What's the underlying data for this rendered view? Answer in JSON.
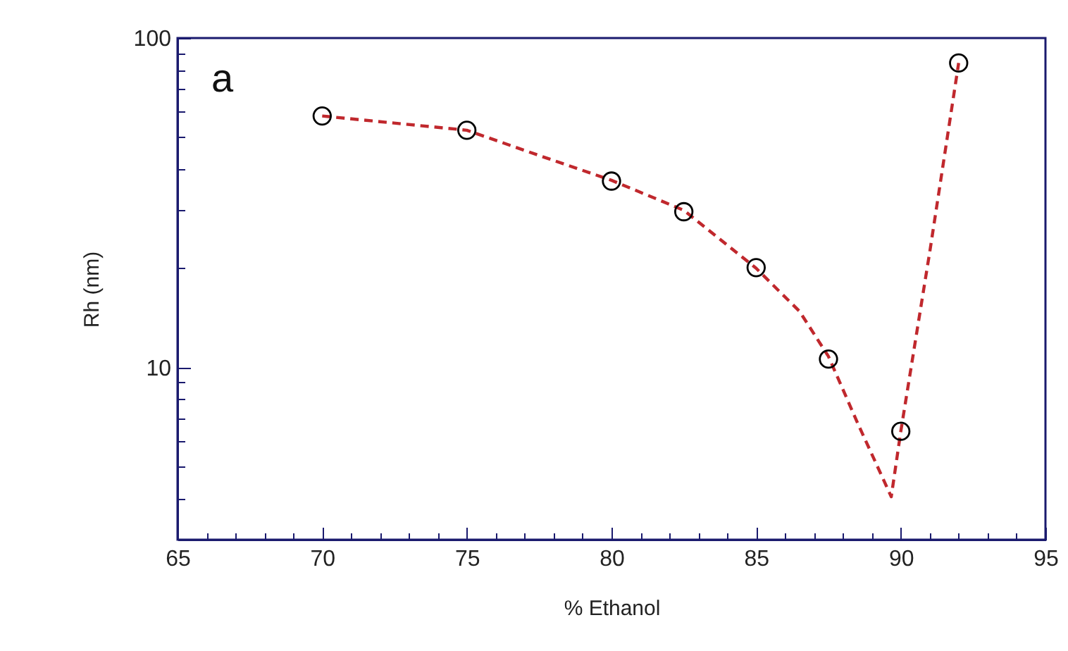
{
  "chart_data": {
    "type": "line",
    "xlabel": "% Ethanol",
    "ylabel": "Rh (nm)",
    "annotations": [
      "a"
    ],
    "log": "y",
    "grid": false,
    "xlim": [
      65,
      95
    ],
    "ylim": [
      3,
      100
    ],
    "xticks": [
      65,
      {
        "value": 66,
        "label": null
      },
      {
        "value": 67,
        "label": null
      },
      {
        "value": 68,
        "label": null
      },
      {
        "value": 69,
        "label": null
      },
      70,
      {
        "value": 71,
        "label": null
      },
      {
        "value": 72,
        "label": null
      },
      {
        "value": 73,
        "label": null
      },
      {
        "value": 74,
        "label": null
      },
      75,
      {
        "value": 76,
        "label": null
      },
      {
        "value": 77,
        "label": null
      },
      {
        "value": 78,
        "label": null
      },
      {
        "value": 79,
        "label": null
      },
      80,
      {
        "value": 81,
        "label": null
      },
      {
        "value": 82,
        "label": null
      },
      {
        "value": 83,
        "label": null
      },
      {
        "value": 84,
        "label": null
      },
      85,
      {
        "value": 86,
        "label": null
      },
      {
        "value": 87,
        "label": null
      },
      {
        "value": 88,
        "label": null
      },
      {
        "value": 89,
        "label": null
      },
      90,
      {
        "value": 91,
        "label": null
      },
      {
        "value": 92,
        "label": null
      },
      {
        "value": 93,
        "label": null
      },
      {
        "value": 94,
        "label": null
      },
      95
    ],
    "yticks": [
      {
        "value": 4,
        "label": null
      },
      {
        "value": 5,
        "label": null
      },
      {
        "value": 6,
        "label": null
      },
      {
        "value": 7,
        "label": null
      },
      {
        "value": 8,
        "label": null
      },
      {
        "value": 9,
        "label": null
      },
      10,
      {
        "value": 20,
        "label": null
      },
      {
        "value": 30,
        "label": null
      },
      {
        "value": 40,
        "label": null
      },
      {
        "value": 50,
        "label": null
      },
      {
        "value": 60,
        "label": null
      },
      {
        "value": 70,
        "label": null
      },
      {
        "value": 80,
        "label": null
      },
      {
        "value": 90,
        "label": null
      },
      100
    ],
    "series": [
      {
        "color": "#c0282d",
        "line_style": "dashed",
        "marker": "none",
        "x": [
          70,
          75,
          77.5,
          80,
          82.5,
          85,
          86.5,
          87.5,
          88.5,
          89.67,
          90,
          91,
          92
        ],
        "values": [
          58,
          52.5,
          44,
          37,
          30,
          20,
          14.8,
          10.8,
          6.8,
          4.05,
          6.4,
          22.4,
          84
        ]
      },
      {
        "type": "scatter",
        "color": "#000000",
        "marker": "circle",
        "x": [
          70,
          75,
          80,
          82.5,
          85,
          87.5,
          90,
          92
        ],
        "values": [
          58,
          52.5,
          36.8,
          29.7,
          20.1,
          10.6,
          6.4,
          84
        ]
      }
    ]
  }
}
